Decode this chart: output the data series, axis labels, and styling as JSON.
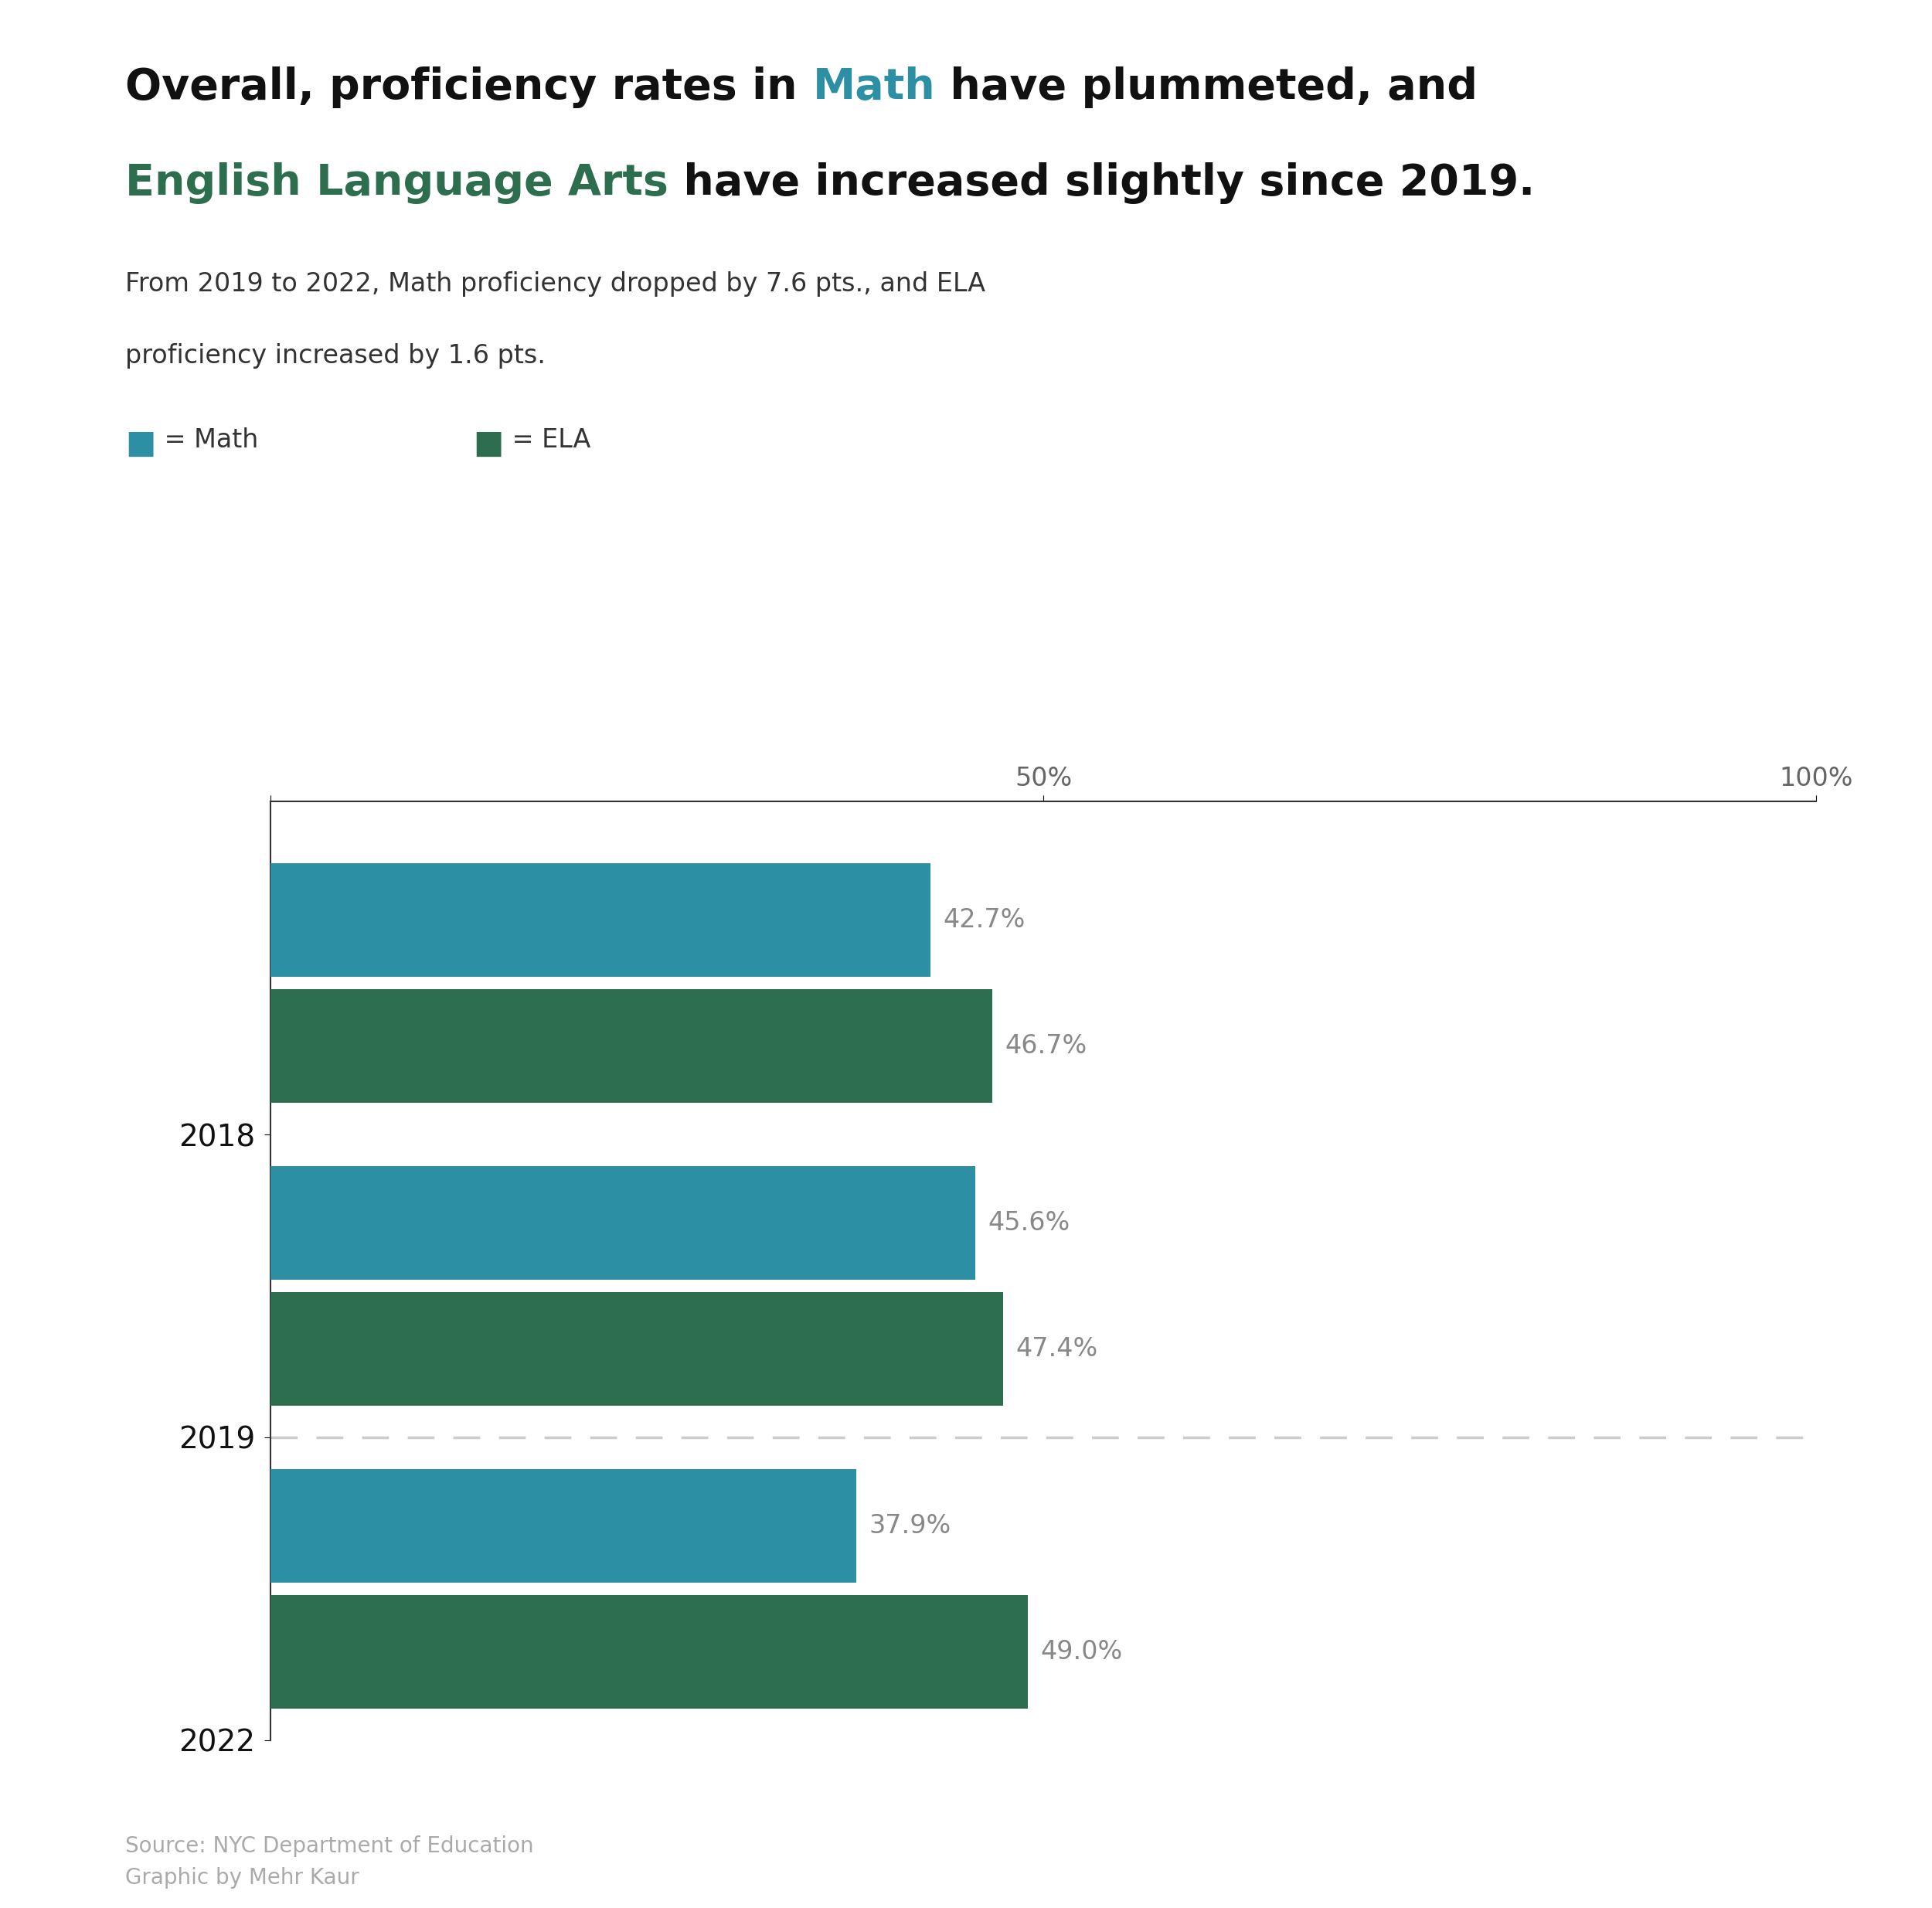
{
  "title_seg1": "Overall, proficiency rates in ",
  "title_math": "Math",
  "title_seg2": " have plummeted, and",
  "title_ela": "English Language Arts",
  "title_seg3": " have increased slightly since 2019.",
  "subtitle_line1": "From 2019 to 2022, Math proficiency dropped by 7.6 pts., and ELA",
  "subtitle_line2": "proficiency increased by 1.6 pts.",
  "years": [
    "2018",
    "2019",
    "2022"
  ],
  "math_values": [
    42.7,
    45.6,
    37.9
  ],
  "ela_values": [
    46.7,
    47.4,
    49.0
  ],
  "math_color": "#2d8fa3",
  "ela_color": "#2d6e4e",
  "label_color": "#888888",
  "dashed_line_color": "#cccccc",
  "source_text": "Source: NYC Department of Education\nGraphic by Mehr Kaur",
  "source_color": "#aaaaaa",
  "bg_color": "#ffffff",
  "title_fontsize": 40,
  "subtitle_fontsize": 24,
  "legend_fontsize": 24,
  "ylabel_fontsize": 28,
  "value_label_fontsize": 24,
  "tick_fontsize": 24,
  "source_fontsize": 20,
  "math_title_color": "#2d8fa3",
  "ela_title_color": "#2d6e4e",
  "axis_color": "#333333"
}
